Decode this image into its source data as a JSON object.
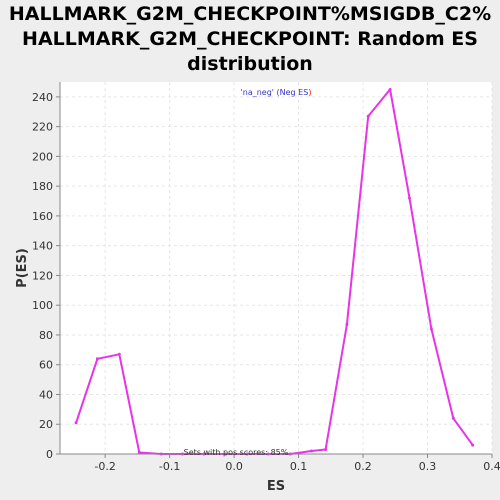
{
  "chart_data": {
    "type": "line",
    "title_lines": [
      "HALLMARK_G2M_CHECKPOINT%MSIGDB_C2%",
      "HALLMARK_G2M_CHECKPOINT: Random ES",
      "distribution"
    ],
    "xlabel": "ES",
    "ylabel": "P(ES)",
    "xlim": [
      -0.27,
      0.4
    ],
    "ylim": [
      0,
      250
    ],
    "xticks": [
      -0.2,
      -0.1,
      0.0,
      0.1,
      0.2,
      0.3,
      0.4
    ],
    "xtick_labels": [
      "-0.2",
      "-0.1",
      "0.0",
      "0.1",
      "0.2",
      "0.3",
      "0.4"
    ],
    "yticks": [
      0,
      20,
      40,
      60,
      80,
      100,
      120,
      140,
      160,
      180,
      200,
      220,
      240
    ],
    "ytick_labels": [
      "0",
      "20",
      "40",
      "60",
      "80",
      "100",
      "120",
      "140",
      "160",
      "180",
      "200",
      "220",
      "240"
    ],
    "grid": true,
    "legend": {
      "placement": "top-center",
      "prefix": "'na_neg' (Neg ES",
      "suffix": ")",
      "prefix_color": "#3333cc",
      "suffix_color": "#ff0000"
    },
    "annotation": "Sets with pos scores: 85%",
    "series": [
      {
        "color": "#e833e8",
        "x": [
          -0.245,
          -0.212,
          -0.178,
          -0.147,
          -0.113,
          -0.08,
          -0.047,
          -0.013,
          0.02,
          0.053,
          0.087,
          0.12,
          0.142,
          0.175,
          0.208,
          0.242,
          0.272,
          0.306,
          0.34,
          0.37
        ],
        "y": [
          21,
          64,
          67,
          1,
          0,
          0,
          0,
          0,
          0,
          0,
          0,
          2,
          3,
          87,
          227,
          245,
          172,
          84,
          24,
          6
        ]
      }
    ]
  }
}
